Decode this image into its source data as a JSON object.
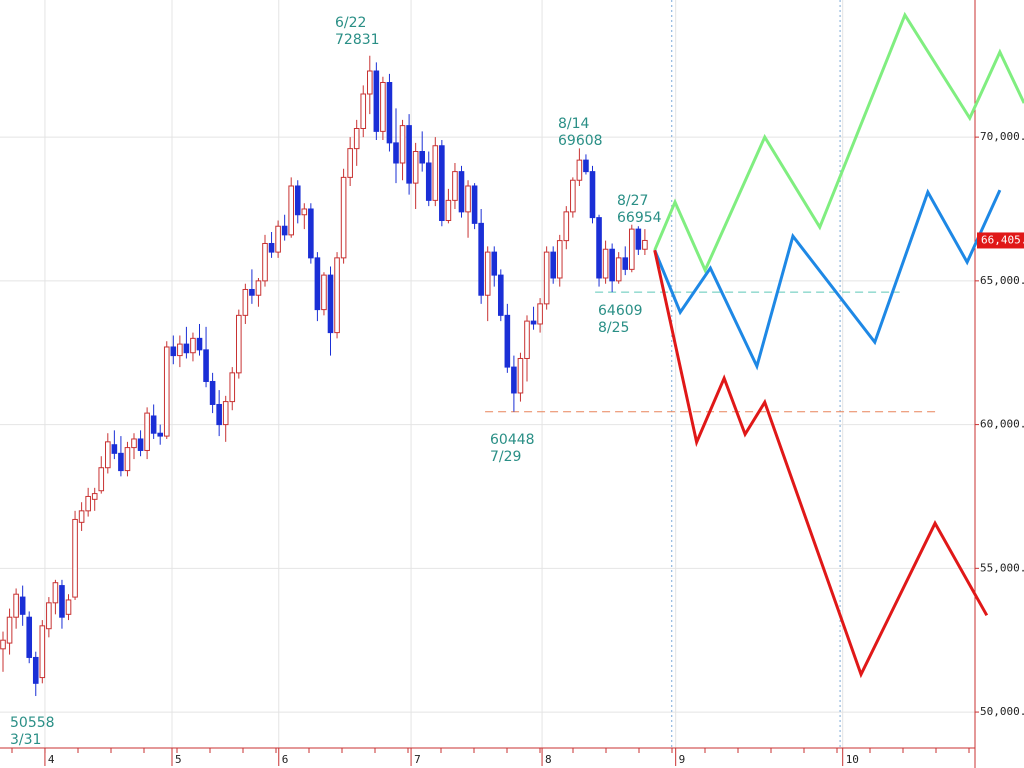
{
  "chart_data": {
    "type": "candlestick",
    "up_color": "#c83232",
    "down_color": "#1a2fd6",
    "ylim": [
      48750,
      74770
    ],
    "xlim": [
      -0.46,
      148.4
    ],
    "yticks": [
      {
        "value": 50000,
        "label": "50,000."
      },
      {
        "value": 55000,
        "label": "55,000."
      },
      {
        "value": 60000,
        "label": "60,000."
      },
      {
        "value": 65000,
        "label": "65,000."
      },
      {
        "value": 70000,
        "label": "70,000."
      }
    ],
    "xticks": [
      {
        "value": 6.4,
        "label": "4"
      },
      {
        "value": 25.8,
        "label": "5"
      },
      {
        "value": 42.1,
        "label": "6"
      },
      {
        "value": 62.3,
        "label": "7"
      },
      {
        "value": 82.3,
        "label": "8"
      },
      {
        "value": 102.7,
        "label": "9"
      },
      {
        "value": 128.2,
        "label": "10"
      }
    ],
    "grid": true,
    "ohlc": [
      [
        52200,
        52800,
        51400,
        52500
      ],
      [
        52400,
        53600,
        52000,
        53300
      ],
      [
        53300,
        54300,
        52900,
        54100
      ],
      [
        54000,
        54400,
        53000,
        53400
      ],
      [
        53300,
        53500,
        51700,
        51900
      ],
      [
        51900,
        52100,
        50558,
        51000
      ],
      [
        51200,
        53200,
        51000,
        53000
      ],
      [
        52900,
        54000,
        52600,
        53800
      ],
      [
        53800,
        54600,
        53400,
        54500
      ],
      [
        54400,
        54600,
        52900,
        53300
      ],
      [
        53400,
        54100,
        53200,
        53900
      ],
      [
        54000,
        57000,
        53900,
        56700
      ],
      [
        56600,
        57300,
        56300,
        57000
      ],
      [
        57000,
        57800,
        56800,
        57500
      ],
      [
        57400,
        57800,
        57000,
        57600
      ],
      [
        57700,
        58900,
        57600,
        58500
      ],
      [
        58500,
        59700,
        58300,
        59400
      ],
      [
        59300,
        59800,
        58800,
        59000
      ],
      [
        59000,
        59600,
        58200,
        58400
      ],
      [
        58400,
        59400,
        58200,
        59200
      ],
      [
        59200,
        59700,
        58800,
        59500
      ],
      [
        59500,
        59800,
        58900,
        59100
      ],
      [
        59100,
        60600,
        58800,
        60400
      ],
      [
        60300,
        60700,
        59500,
        59700
      ],
      [
        59700,
        60000,
        59300,
        59600
      ],
      [
        59600,
        62900,
        59500,
        62700
      ],
      [
        62700,
        63100,
        62100,
        62400
      ],
      [
        62400,
        63100,
        62000,
        62800
      ],
      [
        62800,
        63400,
        62300,
        62500
      ],
      [
        62500,
        63200,
        62200,
        63000
      ],
      [
        63000,
        63500,
        62400,
        62600
      ],
      [
        62600,
        63400,
        61300,
        61500
      ],
      [
        61500,
        61800,
        60400,
        60700
      ],
      [
        60700,
        61200,
        59600,
        60000
      ],
      [
        60000,
        61000,
        59400,
        60800
      ],
      [
        60800,
        62000,
        60500,
        61800
      ],
      [
        61800,
        64000,
        61600,
        63800
      ],
      [
        63800,
        64900,
        63500,
        64700
      ],
      [
        64700,
        65400,
        64200,
        64500
      ],
      [
        64500,
        65100,
        64100,
        65000
      ],
      [
        65000,
        66600,
        64800,
        66300
      ],
      [
        66300,
        66700,
        65800,
        66000
      ],
      [
        66000,
        67100,
        65800,
        66900
      ],
      [
        66900,
        67300,
        66400,
        66600
      ],
      [
        66600,
        68600,
        66500,
        68300
      ],
      [
        68300,
        68500,
        67000,
        67300
      ],
      [
        67300,
        67700,
        66800,
        67500
      ],
      [
        67500,
        67700,
        65600,
        65800
      ],
      [
        65800,
        66000,
        63600,
        64000
      ],
      [
        64000,
        65300,
        63800,
        65200
      ],
      [
        65200,
        65500,
        62400,
        63200
      ],
      [
        63200,
        66000,
        63000,
        65800
      ],
      [
        65800,
        68900,
        65600,
        68600
      ],
      [
        68600,
        70000,
        68300,
        69600
      ],
      [
        69600,
        70600,
        69000,
        70300
      ],
      [
        70300,
        71800,
        70000,
        71500
      ],
      [
        71500,
        72831,
        70800,
        72300
      ],
      [
        72300,
        72600,
        69900,
        70200
      ],
      [
        70200,
        72100,
        69900,
        71900
      ],
      [
        71900,
        72200,
        69500,
        69800
      ],
      [
        69800,
        71000,
        68400,
        69100
      ],
      [
        69100,
        70600,
        68500,
        70400
      ],
      [
        70400,
        70800,
        68000,
        68400
      ],
      [
        68400,
        69800,
        67500,
        69500
      ],
      [
        69500,
        70200,
        68800,
        69100
      ],
      [
        69100,
        69500,
        67600,
        67800
      ],
      [
        67800,
        70000,
        67600,
        69700
      ],
      [
        69700,
        69900,
        66900,
        67100
      ],
      [
        67100,
        68200,
        67000,
        67800
      ],
      [
        67800,
        69100,
        67500,
        68800
      ],
      [
        68800,
        69000,
        67200,
        67400
      ],
      [
        67400,
        68500,
        66500,
        68300
      ],
      [
        68300,
        68400,
        66800,
        67000
      ],
      [
        67000,
        67500,
        64200,
        64500
      ],
      [
        64500,
        66200,
        63600,
        66000
      ],
      [
        66000,
        66200,
        64800,
        65200
      ],
      [
        65200,
        65400,
        63600,
        63800
      ],
      [
        63800,
        64200,
        61800,
        62000
      ],
      [
        62000,
        62400,
        60448,
        61100
      ],
      [
        61100,
        62500,
        60800,
        62300
      ],
      [
        62300,
        63800,
        61500,
        63600
      ],
      [
        63600,
        64100,
        63300,
        63500
      ],
      [
        63500,
        64400,
        63200,
        64200
      ],
      [
        64200,
        66200,
        64000,
        66000
      ],
      [
        66000,
        66200,
        64900,
        65100
      ],
      [
        65100,
        66600,
        64800,
        66400
      ],
      [
        66400,
        67600,
        66100,
        67400
      ],
      [
        67400,
        68600,
        67200,
        68500
      ],
      [
        68500,
        69608,
        68300,
        69200
      ],
      [
        69200,
        69400,
        68700,
        68800
      ],
      [
        68800,
        69000,
        67000,
        67200
      ],
      [
        67200,
        67300,
        64800,
        65100
      ],
      [
        65100,
        66400,
        64900,
        66100
      ],
      [
        66100,
        66300,
        64609,
        65000
      ],
      [
        65000,
        66000,
        64900,
        65800
      ],
      [
        65800,
        66200,
        65200,
        65400
      ],
      [
        65400,
        66954,
        65300,
        66800
      ],
      [
        66800,
        66900,
        65900,
        66100
      ],
      [
        66100,
        66800,
        65900,
        66405
      ]
    ],
    "annotations": [
      {
        "date": "6/22",
        "value": 72831
      },
      {
        "date": "8/14",
        "value": 69608
      },
      {
        "date": "8/27",
        "value": 66954
      },
      {
        "value": 64609,
        "date": "8/25"
      },
      {
        "value": 60448,
        "date": "7/29"
      },
      {
        "value": 50558,
        "date": "3/31"
      }
    ],
    "hlines": [
      {
        "value": 64609,
        "x": [
          90.4,
          136.9
        ],
        "color": "#5cc8b8"
      },
      {
        "value": 60448,
        "x": [
          73.6,
          142.6
        ],
        "color": "#e8845a"
      }
    ],
    "vlines": [
      102.1,
      127.8
    ],
    "projections": [
      {
        "color": "#80ee80",
        "x": [
          99.5,
          102.6,
          107.2,
          116.3,
          124.7,
          137.7,
          147.6,
          152.2,
          155.9
        ],
        "values": [
          66068,
          67738,
          65372,
          70000,
          66868,
          74246,
          70661,
          72958,
          71183
        ]
      },
      {
        "color": "#1e88e5",
        "x": [
          99.5,
          103.4,
          108.0,
          115.1,
          120.6,
          133.1,
          141.2,
          147.2,
          152.2
        ],
        "values": [
          66068,
          63910,
          65441,
          62031,
          66555,
          62866,
          68086,
          65650,
          68156
        ]
      },
      {
        "color": "#e01818",
        "x": [
          99.5,
          105.9,
          110.1,
          113.3,
          116.3,
          131.0,
          142.3,
          150.2
        ],
        "values": [
          66068,
          59386,
          61613,
          59664,
          60778,
          51312,
          56567,
          53366
        ]
      }
    ],
    "last_price": {
      "value": 66405,
      "label": "66,405."
    }
  }
}
